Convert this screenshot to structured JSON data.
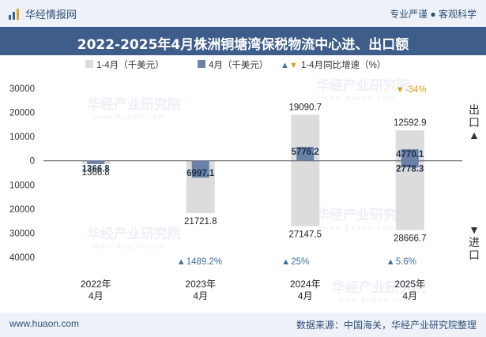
{
  "header": {
    "brand": "华经情报网",
    "tagline": "专业严谨 ● 客观科学",
    "title": "2022-2025年4月株洲铜塘湾保税物流中心进、出口额"
  },
  "footer": {
    "website": "www.huaon.com",
    "source": "数据来源：中国海关，华经产业研究院整理"
  },
  "side_labels": {
    "export": "出口▲",
    "import": "▼进口"
  },
  "watermark": {
    "text": "华经产业研究院",
    "url": "www.huaon.com"
  },
  "colors": {
    "cumulative_bar": "#dcdcdc",
    "month_bar": "#6b82a8",
    "growth_up": "#3e6f9e",
    "growth_down": "#d4a017",
    "header_bg": "#3e5d8a"
  },
  "chart_data": {
    "type": "bar",
    "title": "2022-2025年4月株洲铜塘湾保税物流中心进、出口额",
    "categories": [
      "2022年\n4月",
      "2023年\n4月",
      "2024年\n4月",
      "2025年\n4月"
    ],
    "ylim": [
      -40000,
      30000
    ],
    "yticks": [
      30000,
      20000,
      10000,
      0,
      -10000,
      -20000,
      -30000,
      -40000
    ],
    "ytick_labels": [
      "30000",
      "20000",
      "10000",
      "0",
      "10000",
      "20000",
      "30000",
      "40000"
    ],
    "legend": [
      "1-4月（千美元）",
      "4月（千美元）",
      "1-4月同比增速（%）"
    ],
    "series": [
      {
        "name": "1-4月出口",
        "values": [
          0,
          0,
          19090.7,
          12592.9
        ],
        "labels": [
          "",
          "",
          "19090.7",
          "12592.9"
        ]
      },
      {
        "name": "1-4月进口",
        "values": [
          -1366.8,
          -21721.8,
          -27147.5,
          -28666.7
        ],
        "labels": [
          "1366.8",
          "21721.8",
          "27147.5",
          "28666.7"
        ]
      },
      {
        "name": "4月出口",
        "values": [
          0,
          0,
          5776.2,
          4770.1
        ],
        "labels": [
          "",
          "",
          "5776.2",
          "4770.1"
        ]
      },
      {
        "name": "4月进口",
        "values": [
          -1366.8,
          -6997.1,
          0,
          -2778.3
        ],
        "labels": [
          "1366.8",
          "6997.1",
          "",
          "2778.3"
        ]
      }
    ],
    "growth_export": [
      {
        "direction": "",
        "value": ""
      },
      {
        "direction": "",
        "value": ""
      },
      {
        "direction": "",
        "value": ""
      },
      {
        "direction": "down",
        "value": "-34%"
      }
    ],
    "growth_import": [
      {
        "direction": "",
        "value": ""
      },
      {
        "direction": "up",
        "value": "1489.2%"
      },
      {
        "direction": "up",
        "value": "25%"
      },
      {
        "direction": "up",
        "value": "5.6%"
      }
    ]
  }
}
